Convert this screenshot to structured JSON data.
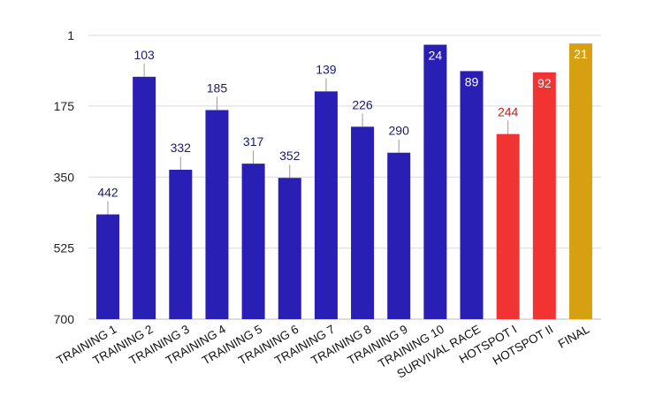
{
  "chart_data": {
    "type": "bar",
    "title": "",
    "xlabel": "",
    "ylabel": "",
    "y_axis": {
      "reversed": true,
      "ylim": [
        700,
        1
      ],
      "ticks": [
        1,
        175,
        350,
        525,
        700
      ],
      "gridlines": true
    },
    "bar_colors": {
      "blue": "#2a1fb5",
      "red": "#f23333",
      "gold": "#d6a010"
    },
    "bars": [
      {
        "category": "TRAINING 1",
        "value": 442,
        "color": "blue",
        "label_position": "above",
        "label_color": "#1a1a70"
      },
      {
        "category": "TRAINING 2",
        "value": 103,
        "color": "blue",
        "label_position": "above",
        "label_color": "#1a1a70"
      },
      {
        "category": "TRAINING 3",
        "value": 332,
        "color": "blue",
        "label_position": "above",
        "label_color": "#1a1a70"
      },
      {
        "category": "TRAINING 4",
        "value": 185,
        "color": "blue",
        "label_position": "above",
        "label_color": "#1a1a70"
      },
      {
        "category": "TRAINING 5",
        "value": 317,
        "color": "blue",
        "label_position": "above",
        "label_color": "#1a1a70"
      },
      {
        "category": "TRAINING 6",
        "value": 352,
        "color": "blue",
        "label_position": "above",
        "label_color": "#1a1a70"
      },
      {
        "category": "TRAINING 7",
        "value": 139,
        "color": "blue",
        "label_position": "above",
        "label_color": "#1a1a70"
      },
      {
        "category": "TRAINING 8",
        "value": 226,
        "color": "blue",
        "label_position": "above",
        "label_color": "#1a1a70"
      },
      {
        "category": "TRAINING 9",
        "value": 290,
        "color": "blue",
        "label_position": "above",
        "label_color": "#1a1a70"
      },
      {
        "category": "TRAINING 10",
        "value": 24,
        "color": "blue",
        "label_position": "inside",
        "label_color": "#ffffff"
      },
      {
        "category": "SURVIVAL RACE",
        "value": 89,
        "color": "blue",
        "label_position": "inside",
        "label_color": "#ffffff"
      },
      {
        "category": "HOTSPOT I",
        "value": 244,
        "color": "red",
        "label_position": "above",
        "label_color": "#b52020"
      },
      {
        "category": "HOTSPOT II",
        "value": 92,
        "color": "red",
        "label_position": "inside",
        "label_color": "#ffffff"
      },
      {
        "category": "FINAL",
        "value": 21,
        "color": "gold",
        "label_position": "inside",
        "label_color": "#ffffff"
      }
    ]
  }
}
